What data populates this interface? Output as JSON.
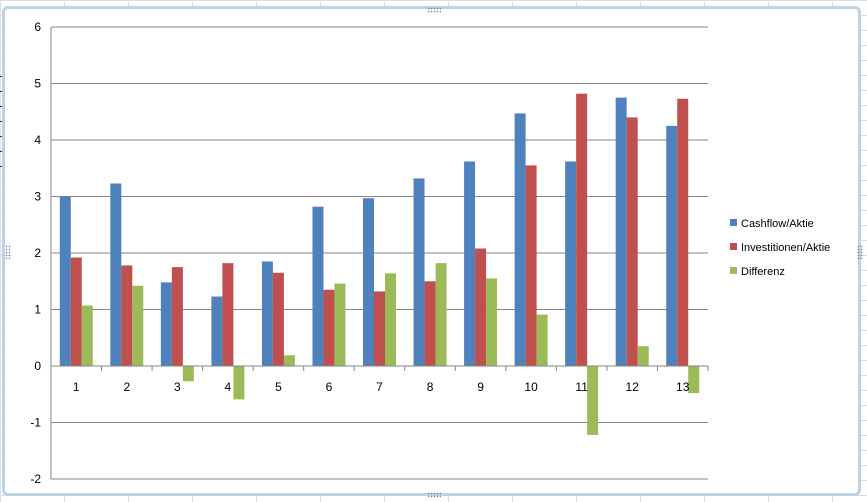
{
  "chart_data": {
    "type": "bar",
    "categories": [
      "1",
      "2",
      "3",
      "4",
      "5",
      "6",
      "7",
      "8",
      "9",
      "10",
      "11",
      "12",
      "13"
    ],
    "series": [
      {
        "name": "Cashflow/Aktie",
        "color": "#4f81bd",
        "values": [
          3.0,
          3.23,
          1.48,
          1.23,
          1.85,
          2.82,
          2.97,
          3.32,
          3.62,
          4.47,
          3.62,
          4.75,
          4.25
        ]
      },
      {
        "name": "Investitionen/Aktie",
        "color": "#c0504d",
        "values": [
          1.92,
          1.78,
          1.75,
          1.82,
          1.65,
          1.35,
          1.32,
          1.5,
          2.08,
          3.55,
          4.82,
          4.4,
          4.73
        ]
      },
      {
        "name": "Differenz",
        "color": "#9bbb59",
        "values": [
          1.07,
          1.42,
          -0.27,
          -0.59,
          0.19,
          1.46,
          1.64,
          1.82,
          1.55,
          0.91,
          -1.22,
          0.35,
          -0.48
        ]
      }
    ],
    "y_ticks": [
      "6",
      "5",
      "4",
      "3",
      "2",
      "1",
      "0",
      "-1",
      "-2"
    ],
    "ylim": [
      -2,
      6
    ],
    "grid": true,
    "legend_position": "right",
    "title": "",
    "xlabel": "",
    "ylabel": ""
  }
}
